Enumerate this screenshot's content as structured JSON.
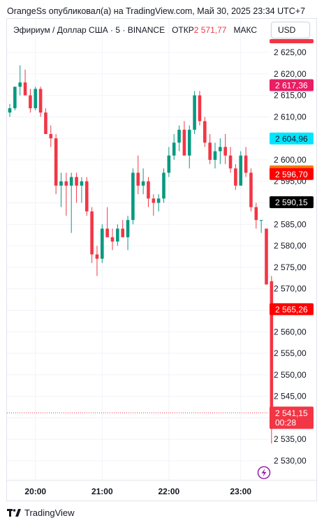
{
  "header": {
    "attribution": "OrangeSs опубликовал(а) на TradingView.com, Май 30, 2025 23:34 UTC+7"
  },
  "legend": {
    "symbol": "Эфириум / Доллар США · 5 · BINANCE",
    "open_label": "ОТКР",
    "open_value": "2 571,77",
    "high_label": "МАКС"
  },
  "currency_button": "USD",
  "footer": {
    "brand": "TradingView"
  },
  "icons": [
    "tradingview-logo-icon",
    "lightning-icon"
  ],
  "colors": {
    "up": "#089981",
    "down": "#f23645",
    "axis_text": "#131722",
    "grid": "#f0f3fa"
  },
  "chart_data": {
    "type": "candlestick",
    "x_tick_labels": [
      "20:00",
      "21:00",
      "22:00",
      "23:00"
    ],
    "y_tick_labels": [
      "2 625,00",
      "2 620,00",
      "2 615,00",
      "2 610,00",
      "2 605,00",
      "2 600,00",
      "2 595,00",
      "2 590,00",
      "2 585,00",
      "2 580,00",
      "2 575,00",
      "2 570,00",
      "2 565,00",
      "2 560,00",
      "2 555,00",
      "2 550,00",
      "2 545,00",
      "2 540,00",
      "2 535,00",
      "2 530,00"
    ],
    "ylim": [
      2527.5,
      2631.5
    ],
    "xlim": [
      -1,
      59
    ],
    "grid": true,
    "price_labels": [
      {
        "value": 2627.6,
        "text": "",
        "bg": "#f23645",
        "color": "#ffffff",
        "height": 6
      },
      {
        "value": 2617.36,
        "text": "2 617,36",
        "bg": "#e91e63",
        "color": "#ffffff"
      },
      {
        "value": 2604.96,
        "text": "2 604,96",
        "bg": "#00e5ff",
        "color": "#131722"
      },
      {
        "value": 2597.32,
        "text": "2 597,32",
        "bg": "#f57c00",
        "color": "#ffffff"
      },
      {
        "value": 2596.7,
        "text": "2 596,70",
        "bg": "#ff0000",
        "color": "#ffffff"
      },
      {
        "value": 2590.15,
        "text": "2 590,15",
        "bg": "#000000",
        "color": "#ffffff"
      },
      {
        "value": 2565.26,
        "text": "2 565,26",
        "bg": "#ff0000",
        "color": "#ffffff"
      }
    ],
    "last_price": {
      "value": 2541.15,
      "text": "2 541,15",
      "countdown": "00:28",
      "bg": "#f23645"
    },
    "candles": [
      {
        "o": 2611.0,
        "h": 2613.0,
        "l": 2610.0,
        "c": 2612.0
      },
      {
        "o": 2612.0,
        "h": 2617.0,
        "l": 2611.5,
        "c": 2617.0
      },
      {
        "o": 2617.0,
        "h": 2622.0,
        "l": 2615.0,
        "c": 2618.0
      },
      {
        "o": 2618.0,
        "h": 2621.0,
        "l": 2615.5,
        "c": 2615.0
      },
      {
        "o": 2615.0,
        "h": 2616.5,
        "l": 2611.0,
        "c": 2612.0
      },
      {
        "o": 2612.0,
        "h": 2617.0,
        "l": 2611.5,
        "c": 2616.5
      },
      {
        "o": 2616.5,
        "h": 2617.0,
        "l": 2610.0,
        "c": 2611.0
      },
      {
        "o": 2611.0,
        "h": 2612.0,
        "l": 2606.0,
        "c": 2606.0
      },
      {
        "o": 2606.0,
        "h": 2608.0,
        "l": 2603.0,
        "c": 2605.0
      },
      {
        "o": 2605.0,
        "h": 2606.0,
        "l": 2592.0,
        "c": 2594.0
      },
      {
        "o": 2594.0,
        "h": 2597.0,
        "l": 2589.0,
        "c": 2595.0
      },
      {
        "o": 2595.0,
        "h": 2597.0,
        "l": 2587.0,
        "c": 2594.0
      },
      {
        "o": 2594.0,
        "h": 2597.0,
        "l": 2583.0,
        "c": 2596.0
      },
      {
        "o": 2596.0,
        "h": 2597.0,
        "l": 2590.0,
        "c": 2594.0
      },
      {
        "o": 2594.0,
        "h": 2596.0,
        "l": 2590.0,
        "c": 2595.0
      },
      {
        "o": 2595.0,
        "h": 2596.0,
        "l": 2587.0,
        "c": 2588.0
      },
      {
        "o": 2588.0,
        "h": 2589.0,
        "l": 2576.0,
        "c": 2578.0
      },
      {
        "o": 2578.0,
        "h": 2580.0,
        "l": 2573.0,
        "c": 2577.0
      },
      {
        "o": 2577.0,
        "h": 2585.0,
        "l": 2576.0,
        "c": 2584.0
      },
      {
        "o": 2584.0,
        "h": 2589.0,
        "l": 2582.0,
        "c": 2582.0
      },
      {
        "o": 2582.0,
        "h": 2584.0,
        "l": 2579.0,
        "c": 2581.0
      },
      {
        "o": 2581.0,
        "h": 2585.0,
        "l": 2580.0,
        "c": 2584.0
      },
      {
        "o": 2584.0,
        "h": 2586.0,
        "l": 2582.0,
        "c": 2582.0
      },
      {
        "o": 2582.0,
        "h": 2587.0,
        "l": 2579.0,
        "c": 2586.0
      },
      {
        "o": 2586.0,
        "h": 2598.0,
        "l": 2585.0,
        "c": 2597.0
      },
      {
        "o": 2597.0,
        "h": 2601.0,
        "l": 2592.0,
        "c": 2594.0
      },
      {
        "o": 2594.0,
        "h": 2598.0,
        "l": 2592.0,
        "c": 2595.0
      },
      {
        "o": 2595.0,
        "h": 2596.0,
        "l": 2589.0,
        "c": 2591.0
      },
      {
        "o": 2591.0,
        "h": 2592.0,
        "l": 2587.0,
        "c": 2590.0
      },
      {
        "o": 2590.0,
        "h": 2592.0,
        "l": 2588.0,
        "c": 2591.0
      },
      {
        "o": 2591.0,
        "h": 2598.0,
        "l": 2590.0,
        "c": 2597.0
      },
      {
        "o": 2597.0,
        "h": 2603.0,
        "l": 2596.0,
        "c": 2601.0
      },
      {
        "o": 2601.0,
        "h": 2606.0,
        "l": 2600.0,
        "c": 2604.0
      },
      {
        "o": 2604.0,
        "h": 2608.0,
        "l": 2602.0,
        "c": 2607.0
      },
      {
        "o": 2607.0,
        "h": 2609.0,
        "l": 2601.0,
        "c": 2601.0
      },
      {
        "o": 2601.0,
        "h": 2608.0,
        "l": 2598.0,
        "c": 2607.0
      },
      {
        "o": 2607.0,
        "h": 2616.0,
        "l": 2606.0,
        "c": 2615.0
      },
      {
        "o": 2615.0,
        "h": 2616.0,
        "l": 2608.0,
        "c": 2609.0
      },
      {
        "o": 2609.0,
        "h": 2610.0,
        "l": 2603.0,
        "c": 2604.0
      },
      {
        "o": 2604.0,
        "h": 2606.0,
        "l": 2599.0,
        "c": 2600.0
      },
      {
        "o": 2600.0,
        "h": 2604.0,
        "l": 2598.0,
        "c": 2602.0
      },
      {
        "o": 2602.0,
        "h": 2605.0,
        "l": 2599.0,
        "c": 2603.0
      },
      {
        "o": 2603.0,
        "h": 2606.0,
        "l": 2599.0,
        "c": 2601.0
      },
      {
        "o": 2601.0,
        "h": 2603.0,
        "l": 2597.0,
        "c": 2598.0
      },
      {
        "o": 2598.0,
        "h": 2599.0,
        "l": 2593.0,
        "c": 2594.0
      },
      {
        "o": 2594.0,
        "h": 2602.0,
        "l": 2594.0,
        "c": 2601.0
      },
      {
        "o": 2601.0,
        "h": 2603.0,
        "l": 2596.0,
        "c": 2597.0
      },
      {
        "o": 2597.0,
        "h": 2598.0,
        "l": 2588.0,
        "c": 2589.0
      },
      {
        "o": 2589.0,
        "h": 2590.0,
        "l": 2584.0,
        "c": 2586.0
      },
      {
        "o": 2586.0,
        "h": 2586.0,
        "l": 2583.0,
        "c": 2586.0
      },
      {
        "o": 2584.0,
        "h": 2584.0,
        "l": 2571.0,
        "c": 2571.0
      },
      {
        "o": 2571.77,
        "h": 2573.0,
        "l": 2534.0,
        "c": 2541.15
      }
    ]
  }
}
